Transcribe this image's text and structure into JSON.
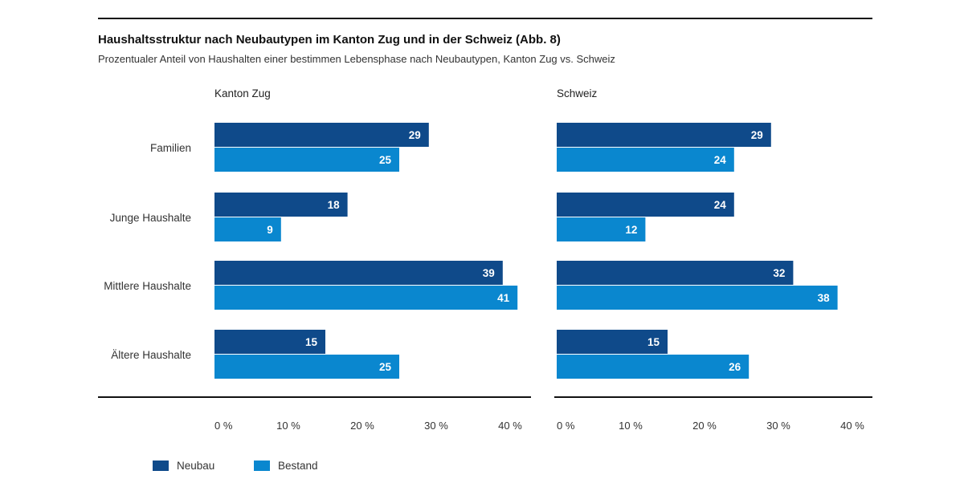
{
  "title": "Haushaltsstruktur nach Neubautypen im Kanton Zug und in der Schweiz (Abb. 8)",
  "subtitle": "Prozentualer Anteil von Haushalten einer bestimmen Lebensphase nach Neubautypen, Kanton Zug vs. Schweiz",
  "colors": {
    "neubau": "#0f4a8a",
    "bestand": "#0a87cf",
    "axis": "#111111"
  },
  "chart_data": {
    "type": "bar",
    "orientation": "horizontal",
    "categories": [
      "Familien",
      "Junge Haushalte",
      "Mittlere Haushalte",
      "Ältere Haushalte"
    ],
    "xlim": [
      0,
      40
    ],
    "x_ticks": [
      "0 %",
      "10 %",
      "20 %",
      "30 %",
      "40 %"
    ],
    "legend_position": "bottom-left",
    "grid": false,
    "panels": [
      {
        "title": "Kanton Zug",
        "series": [
          {
            "name": "Neubau",
            "values": [
              29,
              18,
              39,
              15
            ]
          },
          {
            "name": "Bestand",
            "values": [
              25,
              9,
              41,
              25
            ]
          }
        ]
      },
      {
        "title": "Schweiz",
        "series": [
          {
            "name": "Neubau",
            "values": [
              29,
              24,
              32,
              15
            ]
          },
          {
            "name": "Bestand",
            "values": [
              24,
              12,
              38,
              26
            ]
          }
        ]
      }
    ]
  },
  "legend": {
    "neubau": "Neubau",
    "bestand": "Bestand"
  }
}
